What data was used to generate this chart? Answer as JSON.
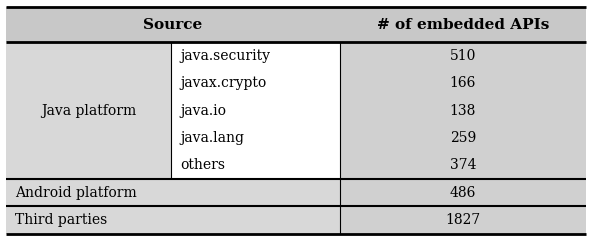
{
  "header": [
    "Source",
    "# of embedded APIs"
  ],
  "col1_header_span": "Source",
  "col2_header": "# of embedded APIs",
  "java_sub_rows": [
    [
      "java.security",
      "510"
    ],
    [
      "javax.crypto",
      "166"
    ],
    [
      "java.io",
      "138"
    ],
    [
      "java.lang",
      "259"
    ],
    [
      "others",
      "374"
    ]
  ],
  "other_rows": [
    [
      "Android platform",
      "486"
    ],
    [
      "Third parties",
      "1827"
    ]
  ],
  "header_bg": "#c8c8c8",
  "java_col1_bg": "#d8d8d8",
  "java_col2_bg": "#ffffff",
  "java_col3_bg": "#d0d0d0",
  "other_col1_bg": "#d8d8d8",
  "other_col3_bg": "#d0d0d0",
  "border_color": "#000000",
  "text_color": "#000000",
  "font_size": 10,
  "header_font_size": 11,
  "col_splits": [
    0.285,
    0.575
  ],
  "fig_width": 5.92,
  "fig_height": 2.46
}
